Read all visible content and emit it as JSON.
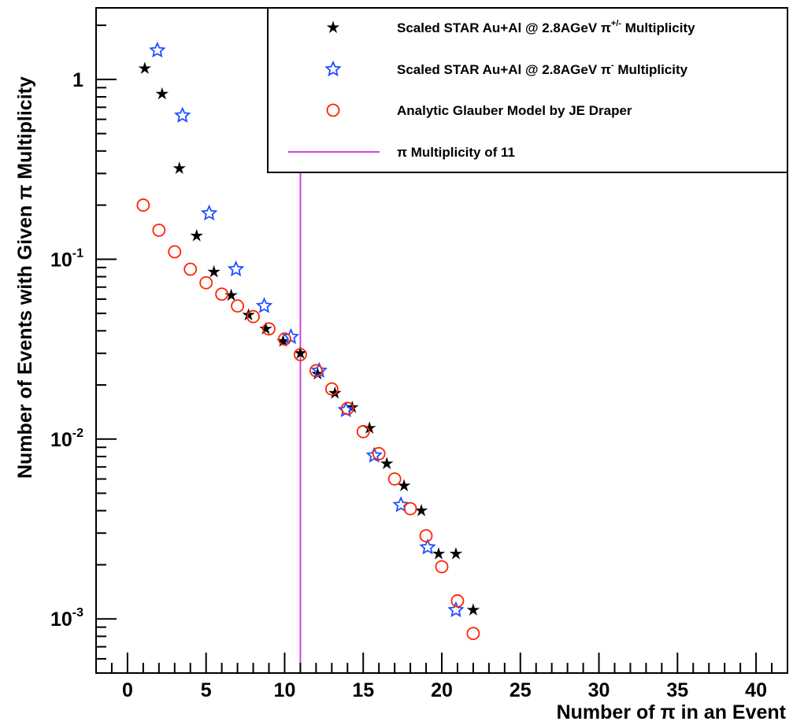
{
  "chart_data": {
    "type": "scatter",
    "title": "",
    "xlabel": "Number of π in an Event",
    "ylabel": "Number of Events with Given π Multiplicity",
    "xlim": [
      -2,
      42
    ],
    "ylim": [
      0.0005,
      2.5
    ],
    "y_scale": "log",
    "grid": false,
    "legend_position": "top-right",
    "x_ticks": [
      0,
      5,
      10,
      15,
      20,
      25,
      30,
      35,
      40
    ],
    "x_tick_labels": [
      "0",
      "5",
      "10",
      "15",
      "20",
      "25",
      "30",
      "35",
      "40"
    ],
    "y_ticks": [
      0.001,
      0.01,
      0.1,
      1
    ],
    "y_tick_labels": [
      {
        "base": "10",
        "exp": "-3"
      },
      {
        "base": "10",
        "exp": "-2"
      },
      {
        "base": "10",
        "exp": "-1"
      },
      {
        "base": "1",
        "exp": ""
      }
    ],
    "series": [
      {
        "name": "Scaled STAR Au+Al @ 2.8AGeV π+/- Multiplicity",
        "legend_parts": {
          "prefix": "Scaled STAR Au+Al @ 2.8AGeV π",
          "sup": "+/-",
          "suffix": " Multiplicity"
        },
        "marker": "star-filled",
        "color": "#000000",
        "x": [
          1.1,
          2.2,
          3.3,
          4.4,
          5.5,
          6.6,
          7.7,
          8.8,
          9.9,
          11.0,
          12.1,
          13.2,
          14.3,
          15.4,
          16.5,
          17.6,
          18.7,
          19.8,
          20.9,
          22.0
        ],
        "y": [
          1.15,
          0.83,
          0.32,
          0.135,
          0.085,
          0.063,
          0.049,
          0.041,
          0.035,
          0.03,
          0.023,
          0.018,
          0.015,
          0.0115,
          0.0073,
          0.0055,
          0.004,
          0.0023,
          0.0023,
          0.00112
        ]
      },
      {
        "name": "Scaled STAR Au+Al @ 2.8AGeV π- Multiplicity",
        "legend_parts": {
          "prefix": "Scaled STAR Au+Al @ 2.8AGeV π",
          "sup": "-",
          "suffix": " Multiplicity"
        },
        "marker": "star-open",
        "color": "#1f4fff",
        "x": [
          1.9,
          3.5,
          5.2,
          6.9,
          8.7,
          10.4,
          12.2,
          13.9,
          15.7,
          17.4,
          19.1,
          20.9
        ],
        "y": [
          1.45,
          0.63,
          0.18,
          0.088,
          0.055,
          0.037,
          0.024,
          0.0145,
          0.0081,
          0.0043,
          0.0025,
          0.00112
        ]
      },
      {
        "name": "Analytic Glauber Model by JE Draper",
        "legend_parts": {
          "prefix": "Analytic Glauber Model by JE Draper",
          "sup": "",
          "suffix": ""
        },
        "marker": "circle-open",
        "color": "#ff2200",
        "x": [
          1,
          2,
          3,
          4,
          5,
          6,
          7,
          8,
          9,
          10,
          11,
          12,
          13,
          14,
          15,
          16,
          17,
          18,
          19,
          20,
          21,
          22
        ],
        "y": [
          0.2,
          0.145,
          0.11,
          0.088,
          0.074,
          0.064,
          0.055,
          0.048,
          0.041,
          0.036,
          0.0295,
          0.024,
          0.019,
          0.0148,
          0.011,
          0.0083,
          0.006,
          0.0041,
          0.0029,
          0.00195,
          0.00126,
          0.00083
        ]
      }
    ],
    "reference_line": {
      "name": "π Multiplicity of 11",
      "legend_parts": {
        "prefix": "π Multiplicity of 11",
        "sup": "",
        "suffix": ""
      },
      "x": 11,
      "color": "#cc44dd"
    }
  }
}
